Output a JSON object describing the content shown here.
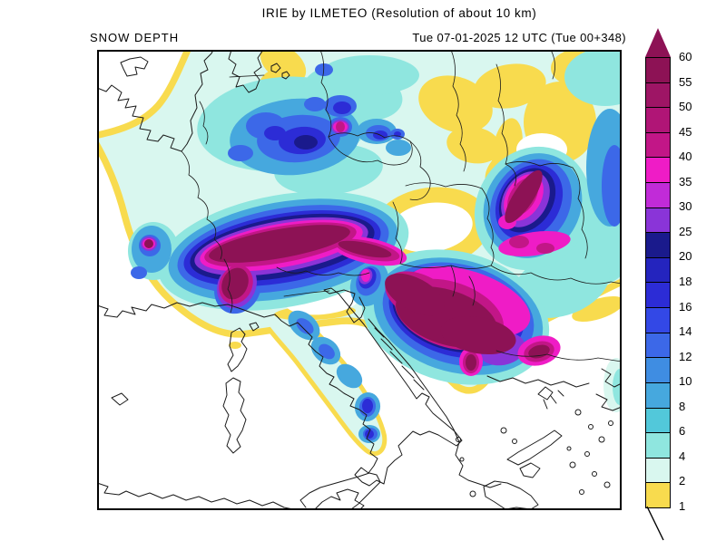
{
  "header": {
    "title": "IRIE by ILMETEO (Resolution of about 10 km)",
    "field_label": "SNOW DEPTH",
    "valid_time": "Tue 07-01-2025 12 UTC (Tue 00+348)"
  },
  "legend": {
    "tick_labels": [
      "60",
      "55",
      "50",
      "45",
      "40",
      "35",
      "30",
      "25",
      "20",
      "18",
      "16",
      "14",
      "12",
      "10",
      "8",
      "6",
      "4",
      "2",
      "1"
    ],
    "segment_colors": [
      "#8D1255",
      "#9E1565",
      "#B01576",
      "#C21687",
      "#EF1CC6",
      "#C12BD8",
      "#8A34D8",
      "#1A1A8C",
      "#2424BE",
      "#2C2CD6",
      "#3348E6",
      "#3C68E8",
      "#3F8DE2",
      "#46A8DE",
      "#52C8DA",
      "#8FE6DF",
      "#D9F7EF",
      "#F8DB4E"
    ],
    "arrow_color": "#8D1255",
    "frame_color": "#000000"
  },
  "chart_data": {
    "type": "heatmap",
    "title": "IRIE by ILMETEO (Resolution of about 10 km)",
    "variable": "SNOW DEPTH",
    "valid_time": "Tue 07-01-2025 12 UTC (Tue 00+348)",
    "colorbar_boundaries": [
      60,
      55,
      50,
      45,
      40,
      35,
      30,
      25,
      20,
      18,
      16,
      14,
      12,
      10,
      8,
      6,
      4,
      2,
      1
    ],
    "colorbar_colors_top_to_bottom": [
      "#8D1255",
      "#9E1565",
      "#B01576",
      "#C21687",
      "#EF1CC6",
      "#C12BD8",
      "#8A34D8",
      "#1A1A8C",
      "#2424BE",
      "#2C2CD6",
      "#3348E6",
      "#3C68E8",
      "#3F8DE2",
      "#46A8DE",
      "#52C8DA",
      "#8FE6DF",
      "#D9F7EF",
      "#F8DB4E"
    ],
    "legend_position": "right",
    "no_data_color": "#FFFFFF"
  },
  "map": {
    "background_color": "#FFFFFF",
    "coastline_color": "#1a1a1a",
    "frame_color": "#000000"
  }
}
